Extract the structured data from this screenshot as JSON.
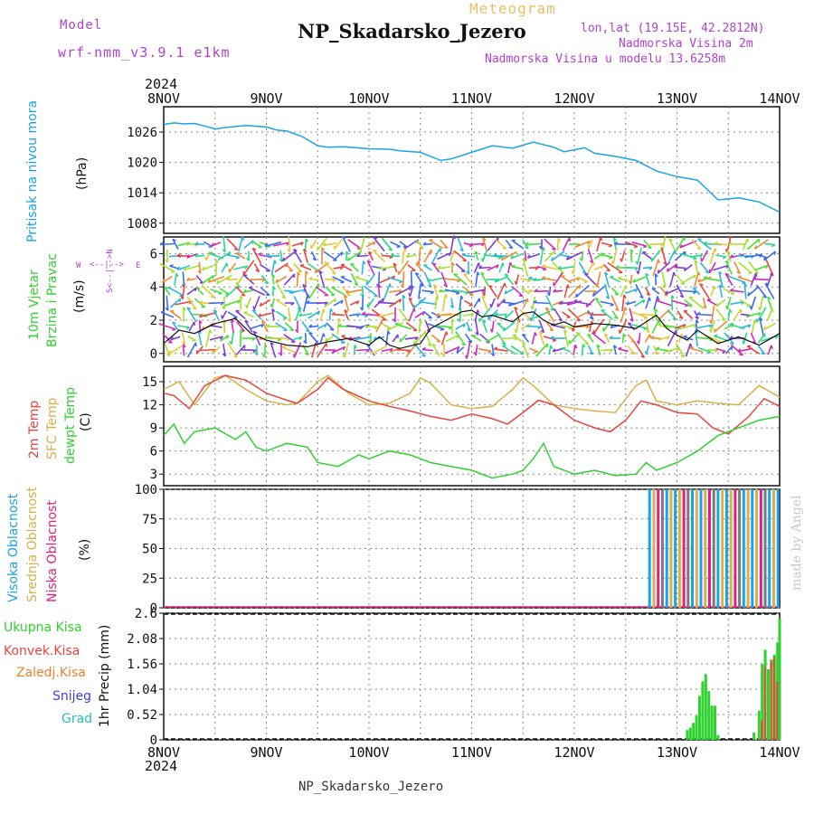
{
  "header": {
    "model_label": "Model",
    "model_name": "wrf-nmm_v3.9.1  e1km",
    "meteogram_label": "Meteogram",
    "station_title": "NP_Skadarsko_Jezero",
    "lonlat": "lon,lat (19.15E, 42.2812N)",
    "elevation": "Nadmorska Visina 2m",
    "model_elevation": "Nadmorska Visina u modelu 13.6258m",
    "year_top": "2024",
    "year_bottom": "2024",
    "footer": "NP_Skadarsko_Jezero",
    "watermark": "made by Angel"
  },
  "colors": {
    "pressure": "#1aa3e8",
    "temp2m": "#e8453c",
    "sfc_temp": "#d8b048",
    "dewpoint": "#2fd32f",
    "high_cloud": "#1aa3e8",
    "mid_cloud": "#d8b048",
    "low_cloud": "#e0207f",
    "total_precip": "#2fd32f",
    "conv_precip": "#e8453c",
    "frozen_precip": "#f08030",
    "snow": "#4040e0",
    "hail": "#20c0c0",
    "purple_text": "#b040d0"
  },
  "chart_data": [
    {
      "type": "line",
      "panel": "pressure",
      "title": "Meteogram",
      "ylabel": [
        "Pritisak na nivou mora",
        "(hPa)"
      ],
      "ylim": [
        1006,
        1031
      ],
      "yticks": [
        1008,
        1014,
        1020,
        1026
      ],
      "x_unit": "days since 2024-11-08 00:00",
      "xticks": [
        "8NOV",
        "9NOV",
        "10NOV",
        "11NOV",
        "12NOV",
        "13NOV",
        "14NOV"
      ],
      "series": [
        {
          "name": "Pritisak na nivou mora",
          "x": [
            0.0,
            0.1,
            0.2,
            0.3,
            0.4,
            0.5,
            0.6,
            0.8,
            1.0,
            1.1,
            1.2,
            1.35,
            1.5,
            1.6,
            1.75,
            2.0,
            2.2,
            2.3,
            2.5,
            2.7,
            2.8,
            3.0,
            3.2,
            3.4,
            3.6,
            3.8,
            3.9,
            4.1,
            4.2,
            4.4,
            4.6,
            4.8,
            5.0,
            5.2,
            5.4,
            5.6,
            5.8,
            6.0
          ],
          "values": [
            1027.5,
            1027.8,
            1027.6,
            1027.7,
            1027.2,
            1026.6,
            1026.9,
            1027.3,
            1027.0,
            1026.4,
            1026.2,
            1025.1,
            1023.3,
            1023.0,
            1023.1,
            1022.7,
            1022.6,
            1022.3,
            1022.0,
            1020.4,
            1020.7,
            1022.0,
            1023.3,
            1022.8,
            1024.0,
            1023.0,
            1022.1,
            1022.9,
            1021.8,
            1021.2,
            1020.4,
            1018.3,
            1017.2,
            1016.5,
            1012.6,
            1013.0,
            1012.2,
            1010.2
          ]
        }
      ]
    },
    {
      "type": "line",
      "panel": "wind",
      "ylabel": [
        "10m Vjetar",
        "Brzina i Pravac",
        "(m/s)"
      ],
      "legend_rose": [
        "W",
        "E",
        "N",
        "S"
      ],
      "ylim": [
        -0.5,
        7.0
      ],
      "yticks": [
        0,
        2,
        4,
        6
      ],
      "x_unit": "days since 2024-11-08 00:00",
      "series": [
        {
          "name": "Brzina",
          "x": [
            0.0,
            0.15,
            0.3,
            0.5,
            0.7,
            0.85,
            1.0,
            1.2,
            1.4,
            1.6,
            1.8,
            2.0,
            2.1,
            2.2,
            2.3,
            2.5,
            2.6,
            2.75,
            2.9,
            3.0,
            3.1,
            3.2,
            3.3,
            3.4,
            3.5,
            3.6,
            3.7,
            3.8,
            3.9,
            4.0,
            4.2,
            4.4,
            4.6,
            4.8,
            4.9,
            5.0,
            5.1,
            5.2,
            5.4,
            5.6,
            5.8,
            6.0
          ],
          "values": [
            0.6,
            1.4,
            1.2,
            1.8,
            2.1,
            1.2,
            0.8,
            0.5,
            0.4,
            0.7,
            0.9,
            0.5,
            1.0,
            0.5,
            0.3,
            0.6,
            1.5,
            2.0,
            2.5,
            2.6,
            2.2,
            2.3,
            2.1,
            1.9,
            2.4,
            2.5,
            2.0,
            1.7,
            1.9,
            1.6,
            1.8,
            1.7,
            1.5,
            2.3,
            1.5,
            1.1,
            0.8,
            1.4,
            0.6,
            1.0,
            0.5,
            1.2
          ]
        }
      ],
      "note": "wind direction shown as colored barbs along each column"
    },
    {
      "type": "line",
      "panel": "temperature",
      "ylabel": [
        "2m Temp",
        "SFC Temp",
        "dewpt Temp",
        "(C)"
      ],
      "ylim": [
        1.5,
        17.0
      ],
      "yticks": [
        3,
        6,
        9,
        12,
        15
      ],
      "x_unit": "days since 2024-11-08 00:00",
      "series": [
        {
          "name": "2m Temp",
          "x": [
            0.0,
            0.1,
            0.25,
            0.4,
            0.6,
            0.8,
            1.0,
            1.2,
            1.3,
            1.5,
            1.6,
            1.75,
            2.0,
            2.2,
            2.4,
            2.6,
            2.8,
            3.0,
            3.2,
            3.35,
            3.5,
            3.65,
            3.8,
            4.0,
            4.2,
            4.35,
            4.5,
            4.65,
            4.8,
            5.0,
            5.2,
            5.35,
            5.5,
            5.7,
            5.85,
            6.0
          ],
          "values": [
            13.5,
            13.2,
            11.5,
            14.5,
            15.8,
            15.2,
            13.5,
            12.6,
            12.2,
            14.0,
            15.5,
            14.0,
            12.5,
            11.8,
            11.2,
            10.5,
            10.0,
            10.8,
            10.2,
            9.5,
            11.0,
            12.6,
            12.0,
            10.0,
            9.0,
            8.5,
            10.0,
            12.5,
            12.0,
            11.0,
            10.8,
            9.0,
            8.2,
            10.5,
            12.8,
            11.8
          ]
        },
        {
          "name": "SFC Temp",
          "x": [
            0.0,
            0.15,
            0.3,
            0.5,
            0.6,
            0.8,
            1.0,
            1.2,
            1.3,
            1.5,
            1.6,
            1.8,
            2.0,
            2.2,
            2.4,
            2.5,
            2.6,
            2.8,
            3.0,
            3.2,
            3.4,
            3.5,
            3.6,
            3.8,
            4.0,
            4.2,
            4.4,
            4.6,
            4.7,
            4.8,
            5.0,
            5.2,
            5.4,
            5.6,
            5.8,
            6.0
          ],
          "values": [
            14.0,
            15.0,
            12.0,
            15.5,
            15.8,
            14.0,
            12.5,
            12.0,
            12.2,
            15.0,
            15.8,
            13.5,
            12.0,
            12.2,
            13.5,
            15.5,
            14.8,
            12.0,
            11.5,
            11.8,
            14.0,
            15.5,
            14.5,
            12.0,
            11.5,
            11.2,
            11.0,
            14.5,
            15.2,
            12.5,
            12.0,
            12.5,
            12.2,
            12.0,
            14.5,
            13.0
          ]
        },
        {
          "name": "dewpt Temp",
          "x": [
            0.0,
            0.1,
            0.2,
            0.3,
            0.5,
            0.7,
            0.8,
            0.9,
            1.0,
            1.2,
            1.4,
            1.5,
            1.7,
            1.9,
            2.0,
            2.2,
            2.4,
            2.6,
            2.8,
            3.0,
            3.2,
            3.4,
            3.5,
            3.6,
            3.7,
            3.8,
            4.0,
            4.2,
            4.4,
            4.6,
            4.7,
            4.8,
            5.0,
            5.2,
            5.4,
            5.6,
            5.8,
            6.0
          ],
          "values": [
            8.0,
            9.5,
            7.0,
            8.5,
            9.0,
            7.5,
            8.5,
            6.5,
            6.0,
            7.0,
            6.5,
            4.5,
            4.0,
            5.5,
            5.0,
            6.0,
            5.5,
            4.5,
            4.0,
            3.5,
            2.5,
            3.0,
            3.5,
            5.0,
            7.0,
            4.0,
            3.0,
            3.5,
            2.8,
            3.0,
            4.5,
            3.5,
            4.5,
            6.0,
            8.0,
            9.0,
            10.0,
            10.5
          ]
        }
      ]
    },
    {
      "type": "bar",
      "panel": "cloud",
      "ylabel": [
        "Visoka Oblacnost",
        "Srednja Oblacnost",
        "Niska Oblacnost",
        "(%)"
      ],
      "ylim": [
        0,
        100
      ],
      "yticks": [
        0,
        25,
        50,
        75,
        100
      ],
      "x_unit": "days since 2024-11-08 00:00",
      "series": [
        {
          "name": "Visoka Oblacnost",
          "x_start": 4.72,
          "x_end": 6.0,
          "value": 100
        },
        {
          "name": "Srednja Oblacnost",
          "x_start": 4.72,
          "x_end": 6.0,
          "value": 100
        },
        {
          "name": "Niska Oblacnost",
          "x_start": 0.0,
          "x_end": 6.0,
          "value": 0
        }
      ]
    },
    {
      "type": "bar",
      "panel": "precipitation",
      "ylabel": [
        "1hr Precip (mm)"
      ],
      "legend": [
        "Ukupna  Kisa",
        "Konvek.Kisa",
        "Zaledj.Kisa",
        "Snijeg",
        "Grad"
      ],
      "ylim": [
        0,
        2.6
      ],
      "yticks": [
        0,
        0.52,
        1.04,
        1.56,
        2.08,
        2.6
      ],
      "x_unit": "days since 2024-11-08 00:00",
      "xticks": [
        "8NOV",
        "9NOV",
        "10NOV",
        "11NOV",
        "12NOV",
        "13NOV",
        "14NOV"
      ],
      "series": [
        {
          "name": "Ukupna  Kisa",
          "x": [
            5.1,
            5.13,
            5.16,
            5.19,
            5.22,
            5.25,
            5.28,
            5.31,
            5.34,
            5.37,
            5.4,
            5.75,
            5.8,
            5.83,
            5.86,
            5.89,
            5.92,
            5.95,
            5.98,
            6.0
          ],
          "values": [
            0.2,
            0.25,
            0.35,
            0.5,
            0.9,
            1.2,
            1.35,
            1.0,
            0.7,
            0.7,
            0.1,
            0.15,
            0.6,
            1.55,
            1.85,
            1.45,
            1.65,
            1.75,
            2.0,
            2.5
          ]
        },
        {
          "name": "Konvek.Kisa",
          "x": [
            5.83,
            5.86,
            5.92,
            5.95,
            5.98
          ],
          "values": [
            0.4,
            1.5,
            1.6,
            1.7,
            1.2
          ]
        }
      ]
    }
  ]
}
